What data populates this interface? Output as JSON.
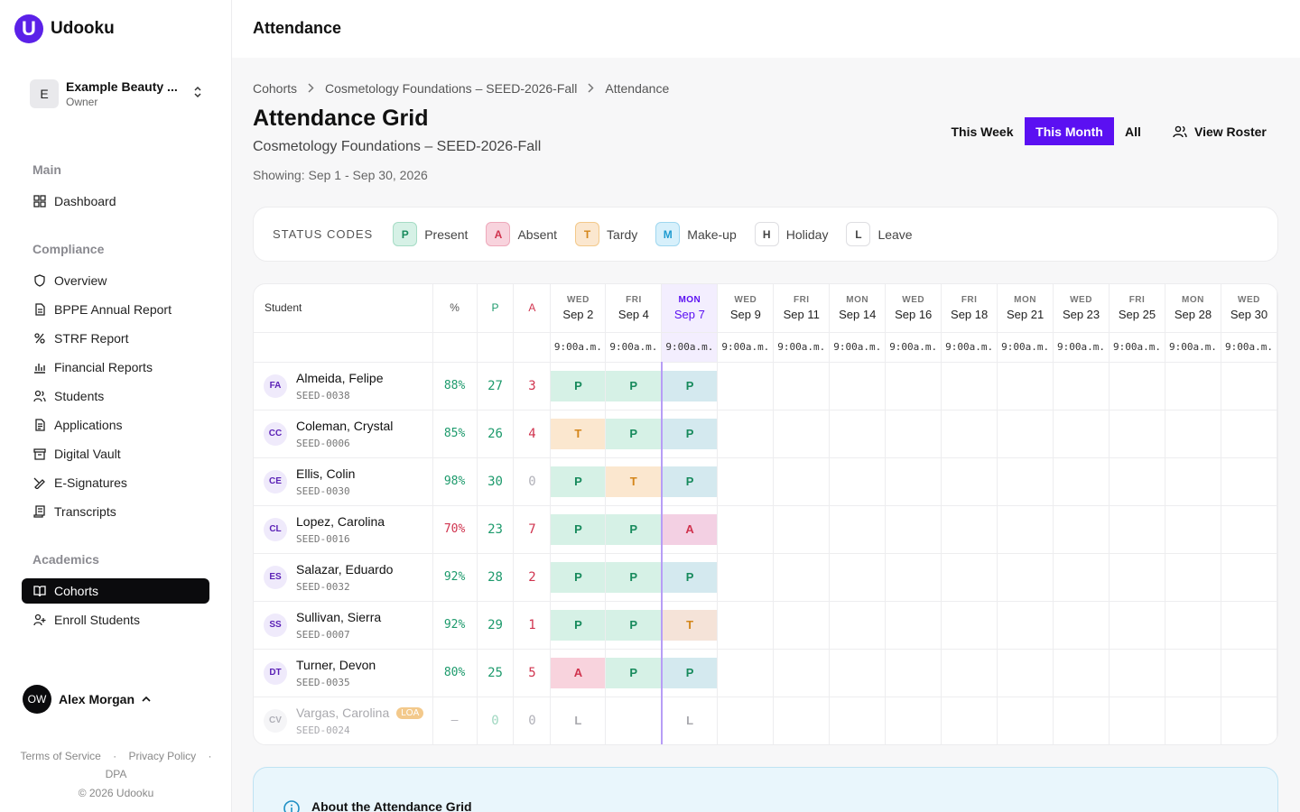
{
  "app": {
    "logo_letter": "U",
    "name": "Udooku"
  },
  "org": {
    "initial": "E",
    "name": "Example Beauty ...",
    "role": "Owner"
  },
  "nav": {
    "main_label": "Main",
    "dashboard": "Dashboard",
    "compliance_label": "Compliance",
    "compliance_items": [
      "Overview",
      "BPPE Annual Report",
      "STRF Report",
      "Financial Reports",
      "Students",
      "Applications",
      "Digital Vault",
      "E-Signatures",
      "Transcripts"
    ],
    "academics_label": "Academics",
    "cohorts": "Cohorts",
    "enroll": "Enroll Students"
  },
  "user": {
    "initials": "OW",
    "name": "Alex Morgan"
  },
  "footer": {
    "terms": "Terms of Service",
    "privacy": "Privacy Policy",
    "dpa": "DPA",
    "copyright": "© 2026 Udooku"
  },
  "header": {
    "title": "Attendance"
  },
  "breadcrumb": [
    "Cohorts",
    "Cosmetology Foundations – SEED-2026-Fall",
    "Attendance"
  ],
  "page": {
    "title": "Attendance Grid",
    "subtitle": "Cosmetology Foundations – SEED-2026-Fall",
    "range": "Showing: Sep 1 - Sep 30, 2026"
  },
  "filters": {
    "week": "This Week",
    "month": "This Month",
    "all": "All",
    "active": "This Month"
  },
  "roster_button": "View Roster",
  "status_codes": {
    "label": "STATUS CODES",
    "items": [
      {
        "code": "P",
        "label": "Present",
        "bg": "#d6f1e6",
        "border": "#a6dcc5",
        "color": "#178a5c"
      },
      {
        "code": "A",
        "label": "Absent",
        "bg": "#f8d3dd",
        "border": "#eea9bb",
        "color": "#d0334e"
      },
      {
        "code": "T",
        "label": "Tardy",
        "bg": "#fbe7cf",
        "border": "#f3c98b",
        "color": "#d4861a"
      },
      {
        "code": "M",
        "label": "Make-up",
        "bg": "#d7f0fb",
        "border": "#9fd7ef",
        "color": "#1e9bd0"
      },
      {
        "code": "H",
        "label": "Holiday",
        "bg": "#ffffff",
        "border": "#dedee2",
        "color": "#444444"
      },
      {
        "code": "L",
        "label": "Leave",
        "bg": "#ffffff",
        "border": "#dedee2",
        "color": "#444444"
      }
    ]
  },
  "grid": {
    "headers": {
      "student": "Student",
      "pct": "%",
      "p": "P",
      "a": "A"
    },
    "time": "9:00a.m.",
    "today_index": 2,
    "days": [
      {
        "dow": "WED",
        "date": "Sep 2"
      },
      {
        "dow": "FRI",
        "date": "Sep 4"
      },
      {
        "dow": "MON",
        "date": "Sep 7"
      },
      {
        "dow": "WED",
        "date": "Sep 9"
      },
      {
        "dow": "FRI",
        "date": "Sep 11"
      },
      {
        "dow": "MON",
        "date": "Sep 14"
      },
      {
        "dow": "WED",
        "date": "Sep 16"
      },
      {
        "dow": "FRI",
        "date": "Sep 18"
      },
      {
        "dow": "MON",
        "date": "Sep 21"
      },
      {
        "dow": "WED",
        "date": "Sep 23"
      },
      {
        "dow": "FRI",
        "date": "Sep 25"
      },
      {
        "dow": "MON",
        "date": "Sep 28"
      },
      {
        "dow": "WED",
        "date": "Sep 30"
      }
    ],
    "students": [
      {
        "initials": "FA",
        "name": "Almeida, Felipe",
        "id": "SEED-0038",
        "pct": "88%",
        "p": "27",
        "a": "3",
        "marks": [
          "P",
          "P",
          "P"
        ]
      },
      {
        "initials": "CC",
        "name": "Coleman, Crystal",
        "id": "SEED-0006",
        "pct": "85%",
        "p": "26",
        "a": "4",
        "marks": [
          "T",
          "P",
          "P"
        ]
      },
      {
        "initials": "CE",
        "name": "Ellis, Colin",
        "id": "SEED-0030",
        "pct": "98%",
        "p": "30",
        "a": "0",
        "marks": [
          "P",
          "T",
          "P"
        ]
      },
      {
        "initials": "CL",
        "name": "Lopez, Carolina",
        "id": "SEED-0016",
        "pct": "70%",
        "p": "23",
        "a": "7",
        "marks": [
          "P",
          "P",
          "A"
        ]
      },
      {
        "initials": "ES",
        "name": "Salazar, Eduardo",
        "id": "SEED-0032",
        "pct": "92%",
        "p": "28",
        "a": "2",
        "marks": [
          "P",
          "P",
          "P"
        ]
      },
      {
        "initials": "SS",
        "name": "Sullivan, Sierra",
        "id": "SEED-0007",
        "pct": "92%",
        "p": "29",
        "a": "1",
        "marks": [
          "P",
          "P",
          "T"
        ]
      },
      {
        "initials": "DT",
        "name": "Turner, Devon",
        "id": "SEED-0035",
        "pct": "80%",
        "p": "25",
        "a": "5",
        "marks": [
          "A",
          "P",
          "P"
        ]
      },
      {
        "initials": "CV",
        "name": "Vargas, Carolina",
        "id": "SEED-0024",
        "pct": "–",
        "p": "0",
        "a": "0",
        "badge": "LOA",
        "marks": [
          "L",
          "",
          "L"
        ]
      }
    ]
  },
  "colors": {
    "accent": "#5b10f2",
    "present": "#1d9a6c",
    "absent": "#d0334e",
    "tardy": "#d4861a"
  },
  "info": {
    "title": "About the Attendance Grid"
  }
}
